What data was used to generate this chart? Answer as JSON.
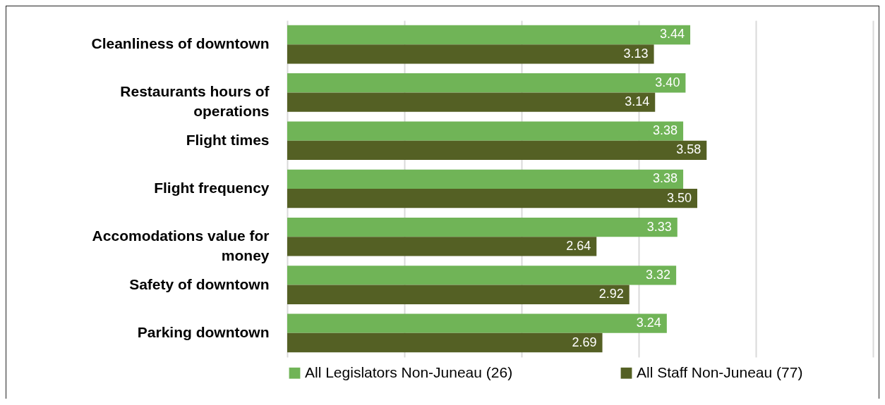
{
  "chart_data": {
    "type": "bar",
    "orientation": "horizontal",
    "categories": [
      "Cleanliness of downtown",
      "Restaurants hours of operations",
      "Flight times",
      "Flight frequency",
      "Accomodations value for money",
      "Safety of downtown",
      "Parking downtown"
    ],
    "series": [
      {
        "name": "All Legislators Non-Juneau (26)",
        "color": "#70b457",
        "values": [
          3.44,
          3.4,
          3.38,
          3.38,
          3.33,
          3.32,
          3.24
        ],
        "value_labels": [
          "3.44",
          "3.40",
          "3.38",
          "3.38",
          "3.33",
          "3.32",
          "3.24"
        ]
      },
      {
        "name": "All Staff Non-Juneau (77)",
        "color": "#546024",
        "values": [
          3.13,
          3.14,
          3.58,
          3.5,
          2.64,
          2.92,
          2.69
        ],
        "value_labels": [
          "3.13",
          "3.14",
          "3.58",
          "3.50",
          "2.64",
          "2.92",
          "2.69"
        ]
      }
    ],
    "xlim": [
      0,
      5
    ],
    "xticks": [
      {
        "value": 0,
        "label": null
      },
      {
        "value": 1,
        "label": null
      },
      {
        "value": 2,
        "label": null
      },
      {
        "value": 3,
        "label": null
      },
      {
        "value": 4,
        "label": null
      },
      {
        "value": 5,
        "label": null
      }
    ],
    "grid": "x",
    "tick_labels": "y",
    "legend": "bottom"
  }
}
